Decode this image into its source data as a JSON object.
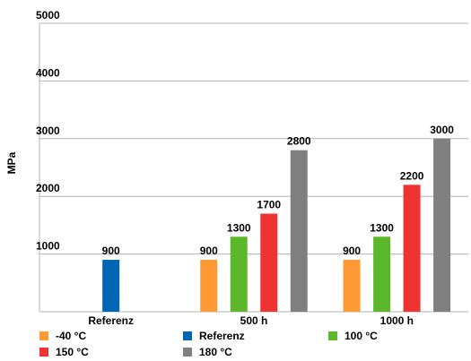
{
  "chart_data": {
    "type": "bar",
    "title": "",
    "xlabel": "",
    "ylabel": "MPa",
    "ylim": [
      0,
      5000
    ],
    "yticks": [
      1000,
      2000,
      3000,
      4000,
      5000
    ],
    "grid": true,
    "legend_position": "bottom",
    "categories": [
      "Referenz",
      "500 h",
      "1000 h"
    ],
    "series": [
      {
        "name": "-40 °C",
        "color": "#FF9933",
        "values": [
          null,
          900,
          900
        ]
      },
      {
        "name": "Referenz",
        "color": "#0066B3",
        "values": [
          900,
          null,
          null
        ]
      },
      {
        "name": "100 °C",
        "color": "#5CB82A",
        "values": [
          null,
          1300,
          1300
        ]
      },
      {
        "name": "150 °C",
        "color": "#EE3333",
        "values": [
          null,
          1700,
          2200
        ]
      },
      {
        "name": "180 °C",
        "color": "#808080",
        "values": [
          null,
          2800,
          3000
        ]
      }
    ]
  }
}
